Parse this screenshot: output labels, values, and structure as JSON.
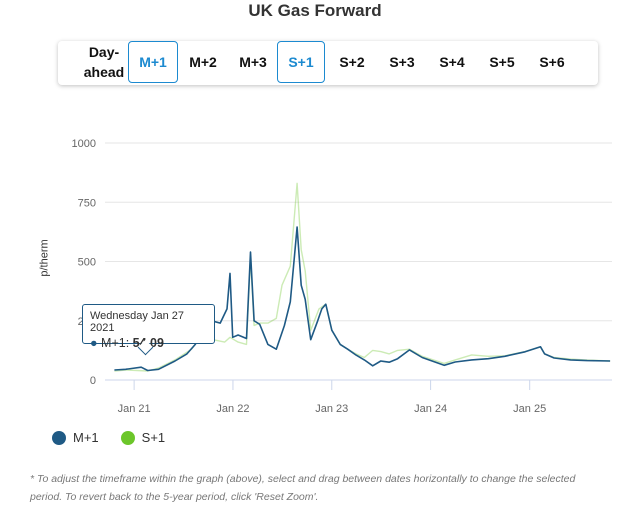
{
  "title": "UK Gas Forward",
  "buttons": [
    {
      "label_line1": "Day-",
      "label_line2": "ahead",
      "active": false
    },
    {
      "label": "M+1",
      "active": true
    },
    {
      "label": "M+2",
      "active": false
    },
    {
      "label": "M+3",
      "active": false
    },
    {
      "label": "S+1",
      "active": true
    },
    {
      "label": "S+2",
      "active": false
    },
    {
      "label": "S+3",
      "active": false
    },
    {
      "label": "S+4",
      "active": false
    },
    {
      "label": "S+5",
      "active": false
    },
    {
      "label": "S+6",
      "active": false
    }
  ],
  "tooltip": {
    "date": "Wednesday Jan 27 2021",
    "series": "M+1",
    "value": "54.09"
  },
  "footnote": "* To adjust the timeframe within the graph (above), select and drag between dates horizontally to change the selected period. To revert back to the 5-year period, click 'Reset Zoom'.",
  "chart_data": {
    "type": "line",
    "ylabel": "p/therm",
    "ylim": [
      0,
      1000
    ],
    "yticks": [
      "0",
      "250",
      "500",
      "750",
      "1000"
    ],
    "xlim": [
      "2020-10-15",
      "2025-11-01"
    ],
    "xticks": [
      {
        "date": "2021-01-01",
        "label": "Jan 21"
      },
      {
        "date": "2022-01-01",
        "label": "Jan 22"
      },
      {
        "date": "2023-01-01",
        "label": "Jan 23"
      },
      {
        "date": "2024-01-01",
        "label": "Jan 24"
      },
      {
        "date": "2025-01-01",
        "label": "Jan 25"
      }
    ],
    "grid": true,
    "legend": "bottom-left",
    "series": [
      {
        "name": "M+1",
        "color": "#1f5a85",
        "points": [
          [
            "2020-10-20",
            42
          ],
          [
            "2020-12-01",
            45
          ],
          [
            "2021-01-27",
            54
          ],
          [
            "2021-02-20",
            40
          ],
          [
            "2021-04-01",
            45
          ],
          [
            "2021-06-01",
            80
          ],
          [
            "2021-07-15",
            110
          ],
          [
            "2021-08-15",
            150
          ],
          [
            "2021-09-15",
            210
          ],
          [
            "2021-10-15",
            250
          ],
          [
            "2021-11-15",
            240
          ],
          [
            "2021-12-10",
            300
          ],
          [
            "2021-12-21",
            450
          ],
          [
            "2021-12-31",
            180
          ],
          [
            "2022-01-20",
            190
          ],
          [
            "2022-02-20",
            175
          ],
          [
            "2022-03-07",
            540
          ],
          [
            "2022-03-20",
            250
          ],
          [
            "2022-04-10",
            235
          ],
          [
            "2022-05-10",
            150
          ],
          [
            "2022-06-10",
            130
          ],
          [
            "2022-07-10",
            230
          ],
          [
            "2022-08-01",
            330
          ],
          [
            "2022-08-26",
            645
          ],
          [
            "2022-09-10",
            400
          ],
          [
            "2022-09-25",
            340
          ],
          [
            "2022-10-15",
            170
          ],
          [
            "2022-11-10",
            250
          ],
          [
            "2022-11-25",
            300
          ],
          [
            "2022-12-10",
            320
          ],
          [
            "2023-01-01",
            210
          ],
          [
            "2023-02-01",
            150
          ],
          [
            "2023-03-01",
            130
          ],
          [
            "2023-04-01",
            105
          ],
          [
            "2023-05-01",
            85
          ],
          [
            "2023-06-01",
            60
          ],
          [
            "2023-07-01",
            80
          ],
          [
            "2023-08-01",
            75
          ],
          [
            "2023-09-01",
            90
          ],
          [
            "2023-10-15",
            127
          ],
          [
            "2023-12-01",
            95
          ],
          [
            "2024-02-20",
            62
          ],
          [
            "2024-04-01",
            76
          ],
          [
            "2024-06-01",
            85
          ],
          [
            "2024-08-01",
            90
          ],
          [
            "2024-10-01",
            100
          ],
          [
            "2024-12-15",
            119
          ],
          [
            "2025-02-10",
            140
          ],
          [
            "2025-02-25",
            110
          ],
          [
            "2025-04-01",
            93
          ],
          [
            "2025-06-01",
            85
          ],
          [
            "2025-08-01",
            82
          ],
          [
            "2025-10-25",
            80
          ]
        ]
      },
      {
        "name": "S+1",
        "color": "#6cc62a",
        "points": [
          [
            "2020-10-20",
            38
          ],
          [
            "2020-12-01",
            42
          ],
          [
            "2021-02-20",
            38
          ],
          [
            "2021-04-01",
            50
          ],
          [
            "2021-06-01",
            85
          ],
          [
            "2021-08-01",
            130
          ],
          [
            "2021-09-15",
            200
          ],
          [
            "2021-10-06",
            300
          ],
          [
            "2021-10-20",
            170
          ],
          [
            "2021-12-01",
            160
          ],
          [
            "2021-12-21",
            180
          ],
          [
            "2022-01-20",
            160
          ],
          [
            "2022-02-20",
            150
          ],
          [
            "2022-03-07",
            520
          ],
          [
            "2022-03-20",
            230
          ],
          [
            "2022-04-10",
            240
          ],
          [
            "2022-05-10",
            240
          ],
          [
            "2022-06-10",
            260
          ],
          [
            "2022-07-01",
            400
          ],
          [
            "2022-08-01",
            480
          ],
          [
            "2022-08-26",
            830
          ],
          [
            "2022-09-10",
            550
          ],
          [
            "2022-09-25",
            460
          ],
          [
            "2022-10-15",
            210
          ],
          [
            "2022-11-15",
            300
          ],
          [
            "2022-12-10",
            320
          ],
          [
            "2023-01-01",
            210
          ],
          [
            "2023-02-01",
            150
          ],
          [
            "2023-03-01",
            130
          ],
          [
            "2023-04-01",
            110
          ],
          [
            "2023-05-01",
            95
          ],
          [
            "2023-06-01",
            125
          ],
          [
            "2023-07-01",
            120
          ],
          [
            "2023-08-01",
            110
          ],
          [
            "2023-09-01",
            125
          ],
          [
            "2023-10-15",
            130
          ],
          [
            "2023-12-01",
            100
          ],
          [
            "2024-02-20",
            70
          ],
          [
            "2024-04-01",
            85
          ],
          [
            "2024-06-01",
            106
          ],
          [
            "2024-08-01",
            100
          ],
          [
            "2024-10-01",
            102
          ],
          [
            "2024-12-15",
            120
          ],
          [
            "2025-02-10",
            140
          ],
          [
            "2025-02-25",
            110
          ],
          [
            "2025-04-01",
            95
          ],
          [
            "2025-06-01",
            88
          ],
          [
            "2025-08-01",
            84
          ],
          [
            "2025-10-25",
            80
          ]
        ]
      }
    ]
  }
}
